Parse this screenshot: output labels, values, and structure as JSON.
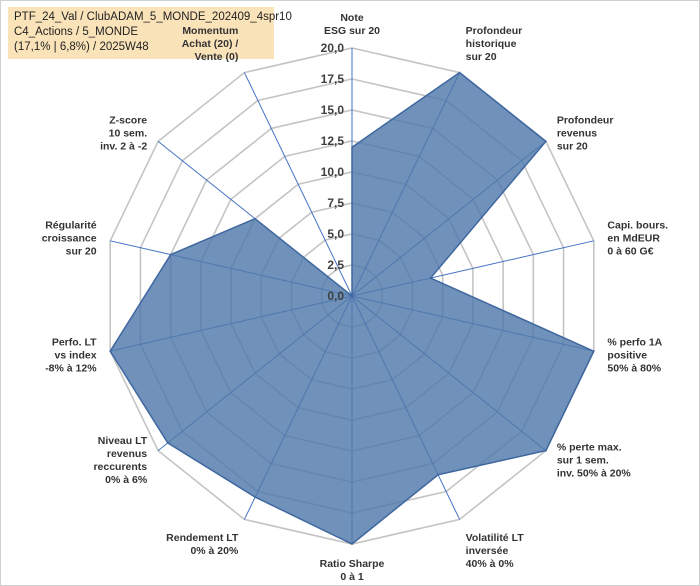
{
  "title_box": {
    "line1": "PTF_24_Val / ClubADAM_5_MONDE_202409_4spr10",
    "line2": "C4_Actions / 5_MONDE",
    "line3": "(17,1% | 6,8%) / 2025W48"
  },
  "colors": {
    "fill": "#4f79ab",
    "stroke": "#3f67a0",
    "grid": "#c4c4c4",
    "spoke": "#4472c4",
    "title_bg": "#fbe3b9"
  },
  "chart_data": {
    "type": "radar",
    "rmin": 0,
    "rmax": 20,
    "ticks": [
      "0,0",
      "2,5",
      "5,0",
      "7,5",
      "10,0",
      "12,5",
      "15,0",
      "17,5",
      "20,0"
    ],
    "axes": [
      {
        "lines": [
          "Note",
          "ESG sur 20"
        ],
        "value": 12.0
      },
      {
        "lines": [
          "Profondeur",
          "historique",
          "sur 20"
        ],
        "value": 20.0
      },
      {
        "lines": [
          "Profondeur",
          "revenus",
          "sur 20"
        ],
        "value": 20.0
      },
      {
        "lines": [
          "Capi. bours.",
          "en MdEUR",
          "0 à 60 G€"
        ],
        "value": 6.5
      },
      {
        "lines": [
          "% perfo 1A",
          "positive",
          "50% à 80%"
        ],
        "value": 20.0
      },
      {
        "lines": [
          "% perte max.",
          "sur 1 sem.",
          "inv. 50% à 20%"
        ],
        "value": 20.0
      },
      {
        "lines": [
          "Volatilité LT",
          "inversée",
          "40% à 0%"
        ],
        "value": 16.0
      },
      {
        "lines": [
          "Ratio Sharpe",
          "0 à 1"
        ],
        "value": 20.0
      },
      {
        "lines": [
          "Rendement LT",
          "0% à 20%"
        ],
        "value": 18.0
      },
      {
        "lines": [
          "Niveau LT",
          "revenus",
          "reccurents",
          "0% à 6%"
        ],
        "value": 19.0
      },
      {
        "lines": [
          "Perfo. LT",
          "vs index",
          "-8% à 12%"
        ],
        "value": 20.0
      },
      {
        "lines": [
          "Régularité",
          "croissance",
          "sur 20"
        ],
        "value": 15.0
      },
      {
        "lines": [
          "Z-score",
          "10 sem.",
          "inv. 2 à -2"
        ],
        "value": 10.0
      },
      {
        "lines": [
          "Momentum",
          "Achat (20) /",
          "Vente (0)"
        ],
        "value": 0.0
      }
    ]
  }
}
